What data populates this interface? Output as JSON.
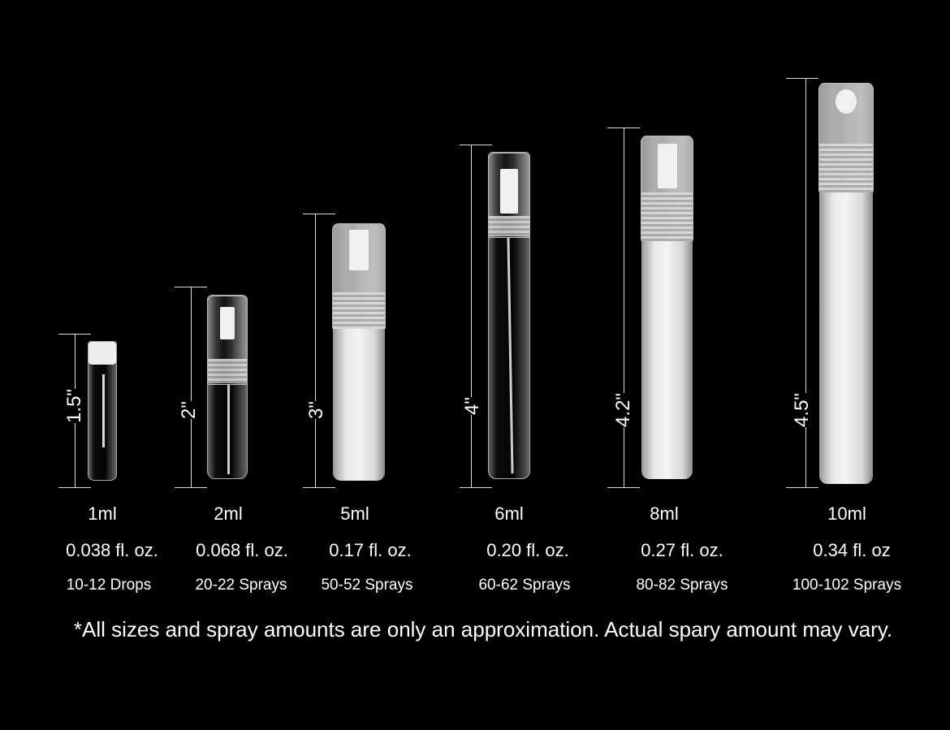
{
  "items": [
    {
      "height": "1.5\"",
      "volume": "1ml",
      "fl_oz": "0.038 fl. oz.",
      "amount": "10-12 Drops"
    },
    {
      "height": "2\"",
      "volume": "2ml",
      "fl_oz": "0.068 fl. oz.",
      "amount": "20-22 Sprays"
    },
    {
      "height": "3\"",
      "volume": "5ml",
      "fl_oz": "0.17 fl. oz.",
      "amount": "50-52 Sprays"
    },
    {
      "height": "4\"",
      "volume": "6ml",
      "fl_oz": "0.20 fl. oz.",
      "amount": "60-62 Sprays"
    },
    {
      "height": "4.2\"",
      "volume": "8ml",
      "fl_oz": "0.27 fl. oz.",
      "amount": "80-82 Sprays"
    },
    {
      "height": "4.5\"",
      "volume": "10ml",
      "fl_oz": "0.34 fl. oz",
      "amount": "100-102 Sprays"
    }
  ],
  "footnote": "*All sizes and spray amounts are only an approximation. Actual spary amount may vary.",
  "colors": {
    "background": "#000000",
    "text": "#ffffff"
  }
}
